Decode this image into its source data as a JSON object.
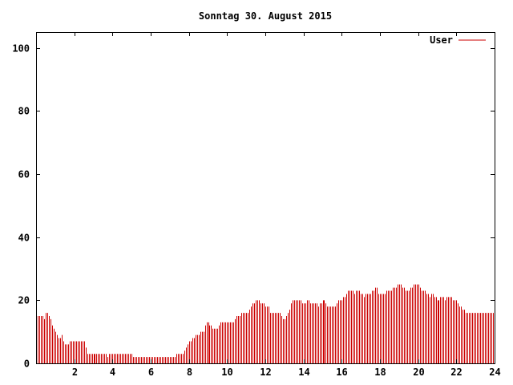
{
  "chart_data": {
    "type": "bar",
    "title": "Sonntag 30. August 2015",
    "xlabel": "",
    "ylabel": "",
    "xlim": [
      0,
      24
    ],
    "ylim": [
      0,
      105
    ],
    "xticks": [
      2,
      4,
      6,
      8,
      10,
      12,
      14,
      16,
      18,
      20,
      22,
      24
    ],
    "yticks": [
      0,
      20,
      40,
      60,
      80,
      100
    ],
    "grid": false,
    "legend_position": "top-right",
    "series": [
      {
        "name": "User",
        "color": "#cc0000",
        "interval_minutes": 5,
        "values": [
          14,
          15,
          15,
          15,
          15,
          14,
          16,
          16,
          15,
          14,
          12,
          11,
          10,
          9,
          8,
          8,
          9,
          7,
          6,
          6,
          6,
          7,
          7,
          7,
          7,
          7,
          7,
          7,
          7,
          7,
          7,
          5,
          3,
          3,
          3,
          3,
          3,
          3,
          3,
          3,
          3,
          3,
          3,
          3,
          3,
          2,
          3,
          3,
          3,
          3,
          3,
          3,
          3,
          3,
          3,
          3,
          3,
          3,
          3,
          3,
          3,
          2,
          2,
          2,
          2,
          2,
          2,
          2,
          2,
          2,
          2,
          2,
          2,
          2,
          2,
          2,
          2,
          2,
          2,
          2,
          2,
          2,
          2,
          2,
          2,
          2,
          2,
          2,
          3,
          3,
          3,
          3,
          3,
          4,
          5,
          6,
          7,
          7,
          8,
          8,
          9,
          9,
          9,
          10,
          10,
          10,
          12,
          13,
          13,
          12,
          12,
          11,
          11,
          11,
          11,
          12,
          13,
          13,
          13,
          13,
          13,
          13,
          13,
          13,
          13,
          14,
          15,
          15,
          15,
          16,
          16,
          16,
          16,
          16,
          17,
          18,
          19,
          19,
          20,
          20,
          20,
          19,
          19,
          19,
          18,
          18,
          18,
          16,
          16,
          16,
          16,
          16,
          16,
          16,
          15,
          14,
          14,
          15,
          16,
          17,
          19,
          20,
          20,
          20,
          20,
          20,
          20,
          19,
          19,
          19,
          20,
          20,
          19,
          19,
          19,
          19,
          19,
          18,
          19,
          19,
          20,
          20,
          19,
          18,
          18,
          18,
          18,
          18,
          18,
          19,
          20,
          20,
          20,
          21,
          21,
          22,
          23,
          23,
          23,
          23,
          22,
          23,
          23,
          23,
          22,
          22,
          21,
          22,
          22,
          22,
          22,
          23,
          23,
          24,
          24,
          22,
          22,
          22,
          22,
          22,
          23,
          23,
          23,
          23,
          24,
          24,
          24,
          25,
          25,
          25,
          24,
          24,
          23,
          23,
          23,
          24,
          24,
          25,
          25,
          25,
          25,
          24,
          23,
          23,
          23,
          22,
          22,
          21,
          22,
          22,
          21,
          21,
          20,
          20,
          21,
          21,
          21,
          20,
          21,
          21,
          21,
          21,
          20,
          20,
          20,
          19,
          18,
          18,
          17,
          17,
          16,
          16,
          16,
          16,
          16,
          16,
          16,
          16,
          16,
          16,
          16,
          16,
          16,
          16,
          16,
          16,
          16,
          16
        ]
      }
    ]
  }
}
